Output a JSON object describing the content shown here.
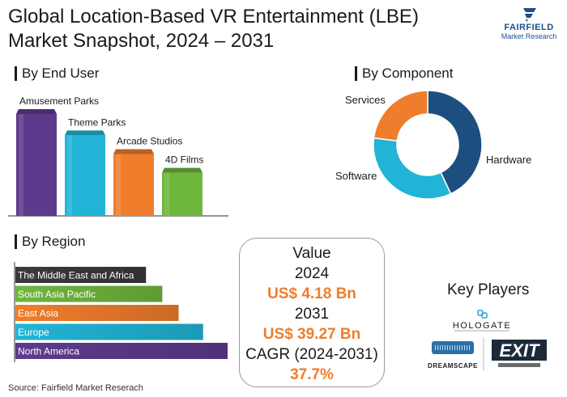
{
  "title_line1": "Global Location-Based VR Entertainment (LBE)",
  "title_line2": "Market Snapshot, 2024 – 2031",
  "logo": {
    "name": "FAIRFIELD",
    "sub": "Market Research"
  },
  "sections": {
    "end_user": "By End User",
    "component": "By Component",
    "region": "By Region"
  },
  "chart_data": [
    {
      "type": "bar",
      "name": "By End User",
      "categories": [
        "Amusement Parks",
        "Theme Parks",
        "Arcade Studios",
        "4D Films"
      ],
      "values": [
        4,
        3.2,
        2.5,
        1.8
      ],
      "colors": [
        "#5e3a8c",
        "#22b4d6",
        "#f07d2c",
        "#6fb63d"
      ]
    },
    {
      "type": "pie",
      "name": "By Component",
      "categories": [
        "Hardware",
        "Software",
        "Services"
      ],
      "values": [
        43,
        34,
        23
      ],
      "colors": [
        "#1c4f80",
        "#22b4d6",
        "#f07d2c"
      ]
    },
    {
      "type": "bar",
      "orientation": "horizontal",
      "name": "By Region",
      "categories": [
        "The Middle East and Africa",
        "South Asia Pacific",
        "East Asia",
        "Europe",
        "North America"
      ],
      "values": [
        1.6,
        1.8,
        2.0,
        2.3,
        2.6
      ],
      "colors": [
        "#3a3a3a",
        "#6fb63d",
        "#f07d2c",
        "#22b4d6",
        "#5e3a8c"
      ]
    }
  ],
  "value_box": {
    "label": "Value",
    "year1": "2024",
    "value1": "US$ 4.18 Bn",
    "year2": "2031",
    "value2": "US$ 39.27 Bn",
    "cagr_label": "CAGR (2024-2031)",
    "cagr": "37.7%"
  },
  "key_players": {
    "title": "Key Players",
    "logos": [
      "HOLOGATE",
      "DREAMSCAPE",
      "EXIT"
    ]
  },
  "source": "Source: Fairfield Market Reserach"
}
